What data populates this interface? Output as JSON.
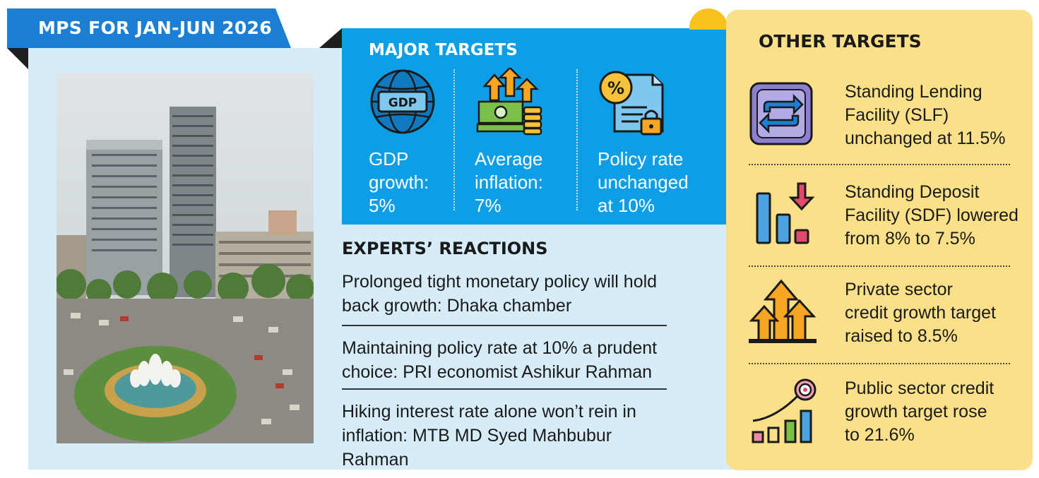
{
  "header": {
    "title": "MPS FOR JAN-JUN 2026"
  },
  "major_targets": {
    "title": "MAJOR TARGETS",
    "items": [
      {
        "icon": "gdp-globe-icon",
        "icon_text": "GDP",
        "label": "GDP\ngrowth:\n5%"
      },
      {
        "icon": "inflation-money-arrows-icon",
        "label": "Average\ninflation:\n7%"
      },
      {
        "icon": "percent-document-lock-icon",
        "label": "Policy rate\nunchanged\nat 10%"
      }
    ]
  },
  "experts": {
    "title": "EXPERTS’ REACTIONS",
    "items": [
      "Prolonged tight monetary policy will hold back growth: Dhaka chamber",
      "Maintaining policy rate at 10% a prudent choice: PRI economist Ashikur Rahman",
      "Hiking interest rate alone won’t rein in inflation: MTB MD Syed Mahbubur Rahman"
    ]
  },
  "other_targets": {
    "title": "OTHER TARGETS",
    "items": [
      {
        "icon": "swap-arrows-icon",
        "label": "Standing Lending\nFacility (SLF)\nunchanged at 11.5%"
      },
      {
        "icon": "bar-down-arrow-icon",
        "label": "Standing Deposit\nFacility (SDF) lowered\nfrom 8% to 7.5%"
      },
      {
        "icon": "rising-arrows-icon",
        "label": "Private sector\ncredit growth target\nraised to 8.5%"
      },
      {
        "icon": "target-growth-chart-icon",
        "label": "Public sector credit\ngrowth target rose\nto 21.6%"
      }
    ]
  },
  "colors": {
    "ribbon_blue": "#1d7fd3",
    "panel_light_blue": "#d6ecf8",
    "major_blue": "#0e9ee6",
    "other_yellow": "#fbe08a",
    "accent_yellow": "#f7c21a"
  }
}
